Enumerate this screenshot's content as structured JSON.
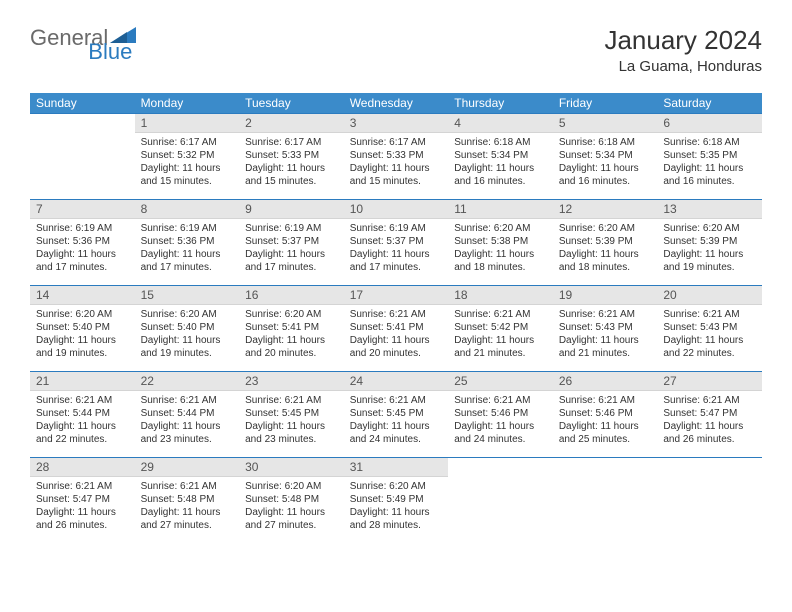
{
  "brand": {
    "general": "General",
    "blue": "Blue"
  },
  "title": "January 2024",
  "location": "La Guama, Honduras",
  "dayHeaders": [
    "Sunday",
    "Monday",
    "Tuesday",
    "Wednesday",
    "Thursday",
    "Friday",
    "Saturday"
  ],
  "header_bg": "#3b8bca",
  "header_fg": "#ffffff",
  "daynum_bg": "#e6e6e6",
  "border_color": "#2b7bbf",
  "weeks": [
    [
      {
        "empty": true
      },
      {
        "day": "1",
        "sunrise": "6:17 AM",
        "sunset": "5:32 PM",
        "daylight": "11 hours and 15 minutes."
      },
      {
        "day": "2",
        "sunrise": "6:17 AM",
        "sunset": "5:33 PM",
        "daylight": "11 hours and 15 minutes."
      },
      {
        "day": "3",
        "sunrise": "6:17 AM",
        "sunset": "5:33 PM",
        "daylight": "11 hours and 15 minutes."
      },
      {
        "day": "4",
        "sunrise": "6:18 AM",
        "sunset": "5:34 PM",
        "daylight": "11 hours and 16 minutes."
      },
      {
        "day": "5",
        "sunrise": "6:18 AM",
        "sunset": "5:34 PM",
        "daylight": "11 hours and 16 minutes."
      },
      {
        "day": "6",
        "sunrise": "6:18 AM",
        "sunset": "5:35 PM",
        "daylight": "11 hours and 16 minutes."
      }
    ],
    [
      {
        "day": "7",
        "sunrise": "6:19 AM",
        "sunset": "5:36 PM",
        "daylight": "11 hours and 17 minutes."
      },
      {
        "day": "8",
        "sunrise": "6:19 AM",
        "sunset": "5:36 PM",
        "daylight": "11 hours and 17 minutes."
      },
      {
        "day": "9",
        "sunrise": "6:19 AM",
        "sunset": "5:37 PM",
        "daylight": "11 hours and 17 minutes."
      },
      {
        "day": "10",
        "sunrise": "6:19 AM",
        "sunset": "5:37 PM",
        "daylight": "11 hours and 17 minutes."
      },
      {
        "day": "11",
        "sunrise": "6:20 AM",
        "sunset": "5:38 PM",
        "daylight": "11 hours and 18 minutes."
      },
      {
        "day": "12",
        "sunrise": "6:20 AM",
        "sunset": "5:39 PM",
        "daylight": "11 hours and 18 minutes."
      },
      {
        "day": "13",
        "sunrise": "6:20 AM",
        "sunset": "5:39 PM",
        "daylight": "11 hours and 19 minutes."
      }
    ],
    [
      {
        "day": "14",
        "sunrise": "6:20 AM",
        "sunset": "5:40 PM",
        "daylight": "11 hours and 19 minutes."
      },
      {
        "day": "15",
        "sunrise": "6:20 AM",
        "sunset": "5:40 PM",
        "daylight": "11 hours and 19 minutes."
      },
      {
        "day": "16",
        "sunrise": "6:20 AM",
        "sunset": "5:41 PM",
        "daylight": "11 hours and 20 minutes."
      },
      {
        "day": "17",
        "sunrise": "6:21 AM",
        "sunset": "5:41 PM",
        "daylight": "11 hours and 20 minutes."
      },
      {
        "day": "18",
        "sunrise": "6:21 AM",
        "sunset": "5:42 PM",
        "daylight": "11 hours and 21 minutes."
      },
      {
        "day": "19",
        "sunrise": "6:21 AM",
        "sunset": "5:43 PM",
        "daylight": "11 hours and 21 minutes."
      },
      {
        "day": "20",
        "sunrise": "6:21 AM",
        "sunset": "5:43 PM",
        "daylight": "11 hours and 22 minutes."
      }
    ],
    [
      {
        "day": "21",
        "sunrise": "6:21 AM",
        "sunset": "5:44 PM",
        "daylight": "11 hours and 22 minutes."
      },
      {
        "day": "22",
        "sunrise": "6:21 AM",
        "sunset": "5:44 PM",
        "daylight": "11 hours and 23 minutes."
      },
      {
        "day": "23",
        "sunrise": "6:21 AM",
        "sunset": "5:45 PM",
        "daylight": "11 hours and 23 minutes."
      },
      {
        "day": "24",
        "sunrise": "6:21 AM",
        "sunset": "5:45 PM",
        "daylight": "11 hours and 24 minutes."
      },
      {
        "day": "25",
        "sunrise": "6:21 AM",
        "sunset": "5:46 PM",
        "daylight": "11 hours and 24 minutes."
      },
      {
        "day": "26",
        "sunrise": "6:21 AM",
        "sunset": "5:46 PM",
        "daylight": "11 hours and 25 minutes."
      },
      {
        "day": "27",
        "sunrise": "6:21 AM",
        "sunset": "5:47 PM",
        "daylight": "11 hours and 26 minutes."
      }
    ],
    [
      {
        "day": "28",
        "sunrise": "6:21 AM",
        "sunset": "5:47 PM",
        "daylight": "11 hours and 26 minutes."
      },
      {
        "day": "29",
        "sunrise": "6:21 AM",
        "sunset": "5:48 PM",
        "daylight": "11 hours and 27 minutes."
      },
      {
        "day": "30",
        "sunrise": "6:20 AM",
        "sunset": "5:48 PM",
        "daylight": "11 hours and 27 minutes."
      },
      {
        "day": "31",
        "sunrise": "6:20 AM",
        "sunset": "5:49 PM",
        "daylight": "11 hours and 28 minutes."
      },
      {
        "empty": true
      },
      {
        "empty": true
      },
      {
        "empty": true
      }
    ]
  ],
  "labels": {
    "sunrise": "Sunrise:",
    "sunset": "Sunset:",
    "daylight": "Daylight:"
  }
}
